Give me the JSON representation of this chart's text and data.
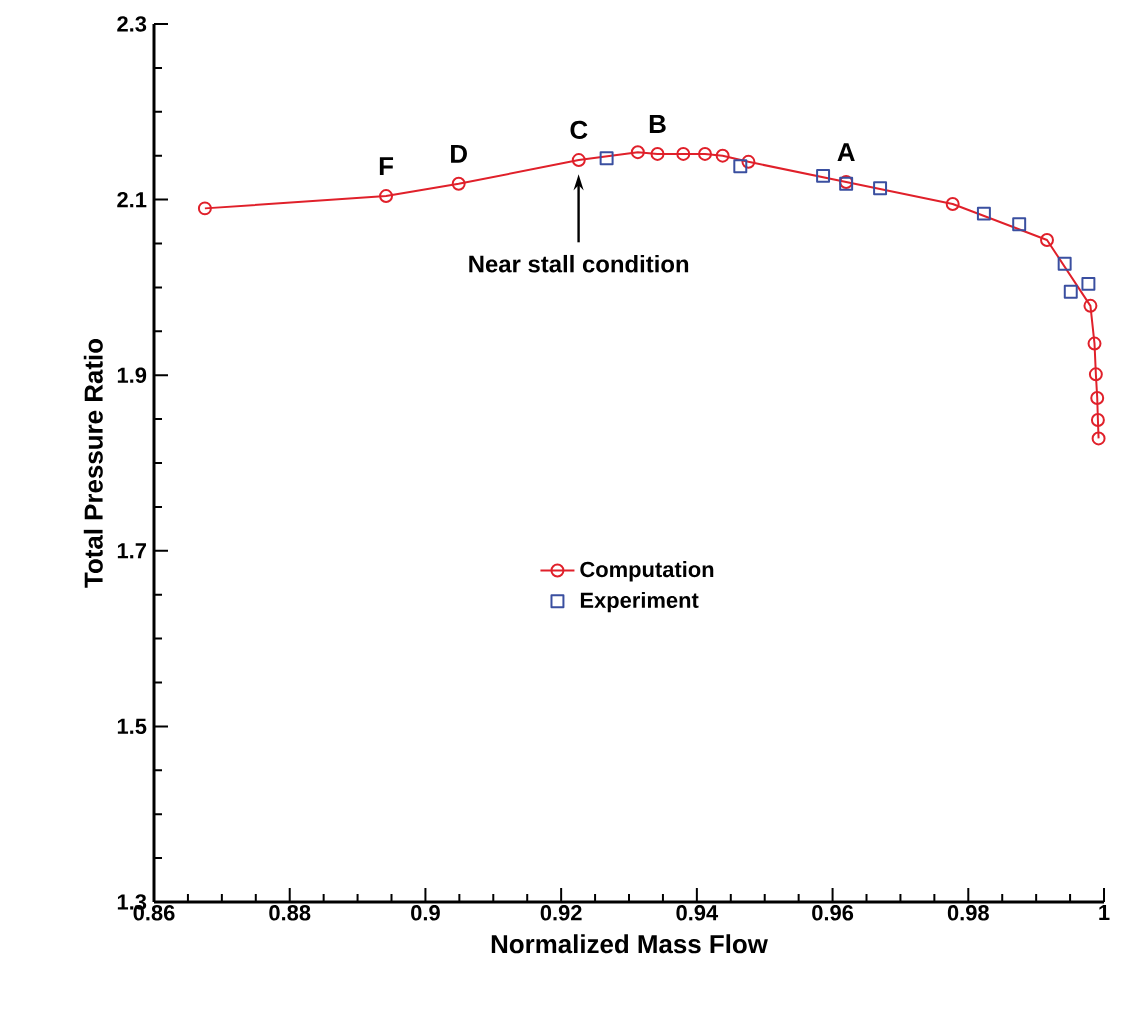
{
  "chart_data": {
    "type": "line",
    "xlabel": "Normalized Mass Flow",
    "ylabel": "Total  Pressure Ratio",
    "xlim": [
      0.86,
      1.0
    ],
    "xticks": [
      0.86,
      0.88,
      0.9,
      0.92,
      0.94,
      0.96,
      0.98,
      1
    ],
    "ylim": [
      1.3,
      2.3
    ],
    "yticks": [
      1.3,
      1.5,
      1.7,
      1.9,
      2.1,
      2.3
    ],
    "grid": false,
    "legend": "center",
    "series": [
      {
        "name": "Computation",
        "marker": "circle",
        "line_style": "solid",
        "color": "#e0202a",
        "x": [
          0.8675,
          0.8942,
          0.9049,
          0.9226,
          0.9313,
          0.9342,
          0.938,
          0.9412,
          0.9438,
          0.9476,
          0.962,
          0.9777,
          0.9916,
          0.998,
          0.9986,
          0.9988,
          0.999,
          0.9991,
          0.9992
        ],
        "values": [
          2.09,
          2.104,
          2.118,
          2.145,
          2.154,
          2.152,
          2.152,
          2.152,
          2.15,
          2.143,
          2.12,
          2.095,
          2.054,
          1.979,
          1.936,
          1.901,
          1.874,
          1.849,
          1.828
        ]
      },
      {
        "name": "Experiment",
        "type": "scatter",
        "marker": "square",
        "color": "#3a4fa0",
        "x": [
          0.9267,
          0.9464,
          0.9586,
          0.962,
          0.967,
          0.9823,
          0.9875,
          0.9942,
          0.9951,
          0.9977
        ],
        "values": [
          2.147,
          2.138,
          2.127,
          2.118,
          2.113,
          2.084,
          2.072,
          2.027,
          1.995,
          2.004
        ]
      }
    ],
    "annotations": [
      {
        "text": "F",
        "x": 0.8942,
        "y": 2.104
      },
      {
        "text": "D",
        "x": 0.9049,
        "y": 2.118
      },
      {
        "text": "C",
        "x": 0.9226,
        "y": 2.145
      },
      {
        "text": "B",
        "x": 0.9342,
        "y": 2.152
      },
      {
        "text": "A",
        "x": 0.962,
        "y": 2.12
      },
      "Near stall condition"
    ]
  }
}
